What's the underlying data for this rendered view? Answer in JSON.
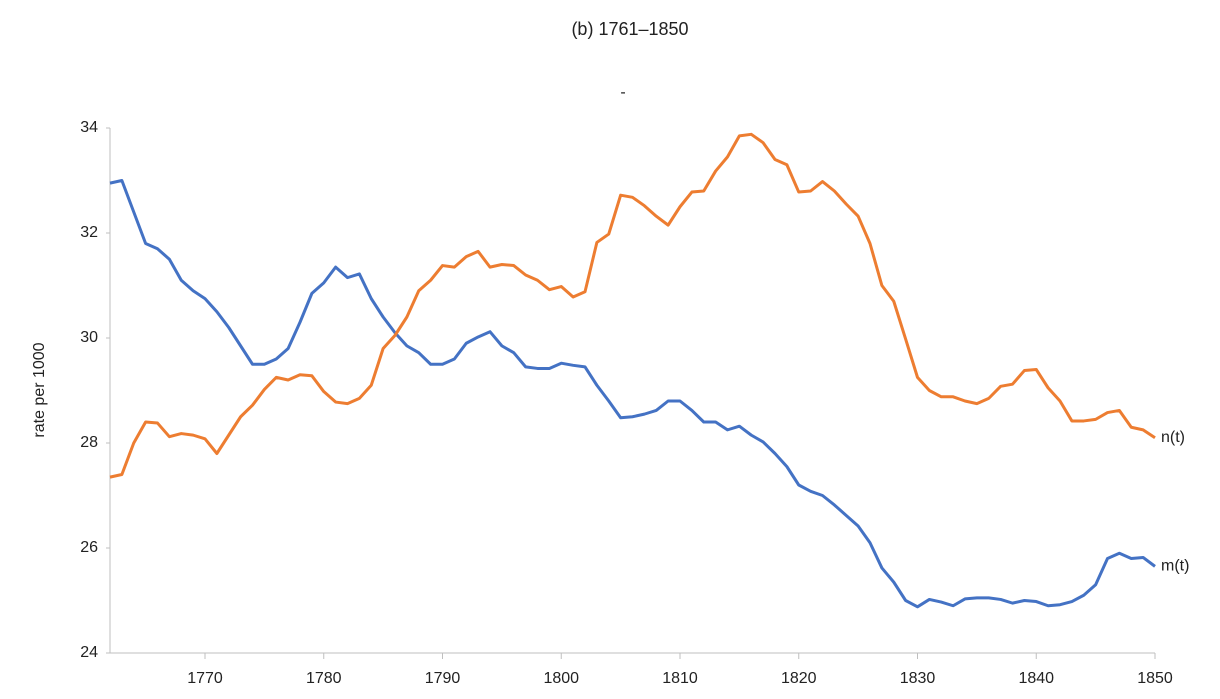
{
  "chart_data": {
    "type": "line",
    "title": "(b)  1761–1850",
    "subtitle": "-",
    "y_label": "rate per 1000",
    "x": [
      1762,
      1763,
      1764,
      1765,
      1766,
      1767,
      1768,
      1769,
      1770,
      1771,
      1772,
      1773,
      1774,
      1775,
      1776,
      1777,
      1778,
      1779,
      1780,
      1781,
      1782,
      1783,
      1784,
      1785,
      1786,
      1787,
      1788,
      1789,
      1790,
      1791,
      1792,
      1793,
      1794,
      1795,
      1796,
      1797,
      1798,
      1799,
      1800,
      1801,
      1802,
      1803,
      1804,
      1805,
      1806,
      1807,
      1808,
      1809,
      1810,
      1811,
      1812,
      1813,
      1814,
      1815,
      1816,
      1817,
      1818,
      1819,
      1820,
      1821,
      1822,
      1823,
      1824,
      1825,
      1826,
      1827,
      1828,
      1829,
      1830,
      1831,
      1832,
      1833,
      1834,
      1835,
      1836,
      1837,
      1838,
      1839,
      1840,
      1841,
      1842,
      1843,
      1844,
      1845,
      1846,
      1847,
      1848,
      1849,
      1850
    ],
    "series": [
      {
        "name": "m(t)",
        "color": "#4472c4",
        "values": [
          32.95,
          33.0,
          32.4,
          31.8,
          31.7,
          31.5,
          31.1,
          30.9,
          30.75,
          30.5,
          30.2,
          29.85,
          29.5,
          29.5,
          29.6,
          29.8,
          30.3,
          30.85,
          31.05,
          31.35,
          31.15,
          31.22,
          30.75,
          30.4,
          30.1,
          29.85,
          29.72,
          29.5,
          29.5,
          29.6,
          29.9,
          30.02,
          30.12,
          29.85,
          29.72,
          29.45,
          29.42,
          29.42,
          29.52,
          29.48,
          29.45,
          29.1,
          28.8,
          28.48,
          28.5,
          28.55,
          28.62,
          28.8,
          28.8,
          28.62,
          28.4,
          28.4,
          28.25,
          28.32,
          28.15,
          28.02,
          27.8,
          27.55,
          27.2,
          27.08,
          27.0,
          26.82,
          26.62,
          26.42,
          26.1,
          25.62,
          25.35,
          25.0,
          24.88,
          25.02,
          24.97,
          24.9,
          25.03,
          25.05,
          25.05,
          25.02,
          24.95,
          25.0,
          24.98,
          24.9,
          24.92,
          24.98,
          25.1,
          25.3,
          25.8,
          25.9,
          25.8,
          25.82,
          25.65
        ]
      },
      {
        "name": "n(t)",
        "color": "#ed7d31",
        "values": [
          27.35,
          27.4,
          28.0,
          28.4,
          28.38,
          28.12,
          28.18,
          28.15,
          28.08,
          27.8,
          28.15,
          28.5,
          28.72,
          29.02,
          29.25,
          29.2,
          29.3,
          29.28,
          28.98,
          28.78,
          28.75,
          28.85,
          29.1,
          29.8,
          30.05,
          30.4,
          30.9,
          31.1,
          31.38,
          31.35,
          31.55,
          31.65,
          31.35,
          31.4,
          31.38,
          31.2,
          31.1,
          30.92,
          30.98,
          30.78,
          30.88,
          31.82,
          31.98,
          32.72,
          32.68,
          32.52,
          32.32,
          32.15,
          32.5,
          32.78,
          32.8,
          33.18,
          33.45,
          33.85,
          33.88,
          33.72,
          33.4,
          33.3,
          32.78,
          32.8,
          32.98,
          32.8,
          32.55,
          32.32,
          31.8,
          31.0,
          30.7,
          29.98,
          29.25,
          29.0,
          28.88,
          28.88,
          28.8,
          28.75,
          28.85,
          29.08,
          29.12,
          29.38,
          29.4,
          29.05,
          28.8,
          28.42,
          28.42,
          28.45,
          28.58,
          28.62,
          28.3,
          28.25,
          28.1
        ]
      }
    ],
    "xlim": [
      1762,
      1850
    ],
    "ylim": [
      24,
      34
    ],
    "xticks": [
      1770,
      1780,
      1790,
      1800,
      1810,
      1820,
      1830,
      1840,
      1850
    ],
    "yticks": [
      24,
      26,
      28,
      30,
      32,
      34
    ],
    "grid": false
  }
}
